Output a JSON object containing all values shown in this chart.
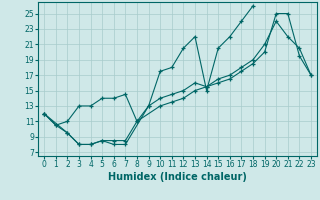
{
  "xlabel": "Humidex (Indice chaleur)",
  "bg_color": "#cfe8e8",
  "grid_color": "#a8cccc",
  "line_color": "#006666",
  "xlim": [
    -0.5,
    23.5
  ],
  "ylim": [
    6.5,
    26.5
  ],
  "xticks": [
    0,
    1,
    2,
    3,
    4,
    5,
    6,
    7,
    8,
    9,
    10,
    11,
    12,
    13,
    14,
    15,
    16,
    17,
    18,
    19,
    20,
    21,
    22,
    23
  ],
  "yticks": [
    7,
    9,
    11,
    13,
    15,
    17,
    19,
    21,
    23,
    25
  ],
  "line1_x": [
    0,
    1,
    2,
    3,
    4,
    5,
    6,
    7,
    8,
    9,
    10,
    11,
    12,
    13,
    14,
    15,
    16,
    17,
    18
  ],
  "line1_y": [
    12,
    10.5,
    11,
    13,
    13,
    14,
    14,
    14.5,
    11,
    13,
    17.5,
    18,
    20.5,
    22,
    15,
    20.5,
    22,
    24,
    26
  ],
  "line2_x": [
    0,
    1,
    2,
    3,
    4,
    5,
    6,
    7,
    8,
    10,
    11,
    12,
    13,
    14,
    15,
    16,
    17,
    18,
    19,
    20,
    21,
    22,
    23
  ],
  "line2_y": [
    12,
    10.5,
    9.5,
    8,
    8,
    8.5,
    8.5,
    8.5,
    11,
    13,
    13.5,
    14,
    15,
    15.5,
    16,
    16.5,
    17.5,
    18.5,
    20,
    25,
    25,
    19.5,
    17
  ],
  "line3_x": [
    0,
    2,
    3,
    4,
    5,
    6,
    7,
    9,
    10,
    11,
    12,
    13,
    14,
    15,
    16,
    17,
    18,
    19,
    20,
    21,
    22,
    23
  ],
  "line3_y": [
    12,
    9.5,
    8,
    8,
    8.5,
    8,
    8,
    13,
    14,
    14.5,
    15,
    16,
    15.5,
    16.5,
    17,
    18,
    19,
    21,
    24,
    22,
    20.5,
    17
  ]
}
